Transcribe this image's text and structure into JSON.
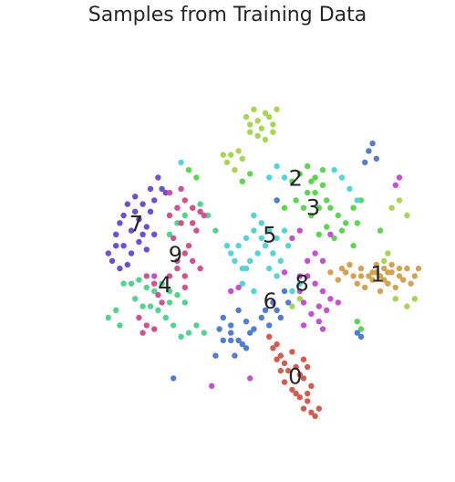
{
  "chart_data": {
    "type": "scatter",
    "title": "Samples from Training Data",
    "xlabel": "",
    "ylabel": "",
    "axes_visible": false,
    "grid": false,
    "legend": "none",
    "xlim": [
      0,
      100
    ],
    "ylim": [
      0,
      100
    ],
    "series": [
      {
        "label": "0",
        "color": "#d65a4f",
        "points": [
          [
            57,
            25
          ],
          [
            58,
            22
          ],
          [
            59,
            23
          ],
          [
            60,
            21
          ],
          [
            59,
            19
          ],
          [
            60,
            16
          ],
          [
            62,
            14
          ],
          [
            63,
            13
          ],
          [
            61,
            19
          ],
          [
            64,
            18
          ],
          [
            66,
            20
          ],
          [
            65,
            17
          ],
          [
            64,
            12
          ],
          [
            66,
            11
          ],
          [
            67,
            8
          ],
          [
            65,
            9
          ],
          [
            68,
            7
          ],
          [
            69,
            9
          ],
          [
            66,
            13
          ],
          [
            67,
            15
          ],
          [
            56,
            28
          ],
          [
            58,
            26
          ],
          [
            62,
            24
          ],
          [
            65,
            22
          ],
          [
            63,
            20
          ]
        ]
      },
      {
        "label": "1",
        "color": "#d6a24f",
        "points": [
          [
            72,
            45
          ],
          [
            74,
            43
          ],
          [
            76,
            45
          ],
          [
            78,
            44
          ],
          [
            80,
            46
          ],
          [
            82,
            44
          ],
          [
            84,
            45
          ],
          [
            86,
            43
          ],
          [
            88,
            45
          ],
          [
            90,
            44
          ],
          [
            92,
            46
          ],
          [
            94,
            44
          ],
          [
            79,
            42
          ],
          [
            81,
            41
          ],
          [
            83,
            43
          ],
          [
            85,
            40
          ],
          [
            87,
            42
          ],
          [
            89,
            41
          ],
          [
            91,
            43
          ],
          [
            75,
            46
          ],
          [
            77,
            47
          ],
          [
            84,
            47
          ],
          [
            86,
            46
          ],
          [
            88,
            47
          ],
          [
            90,
            46
          ],
          [
            93,
            42
          ],
          [
            95,
            46
          ],
          [
            80,
            44
          ],
          [
            83,
            45
          ],
          [
            85,
            44
          ],
          [
            87,
            45
          ]
        ]
      },
      {
        "label": "2",
        "color": "#a8d64f",
        "points": [
          [
            50,
            86
          ],
          [
            51,
            84
          ],
          [
            52,
            88
          ],
          [
            53,
            85
          ],
          [
            54,
            83
          ],
          [
            55,
            87
          ],
          [
            56,
            86
          ],
          [
            57,
            84
          ],
          [
            58,
            88
          ],
          [
            53,
            81
          ],
          [
            55,
            80
          ],
          [
            57,
            82
          ],
          [
            51,
            82
          ],
          [
            44,
            76
          ],
          [
            46,
            76
          ],
          [
            48,
            77
          ],
          [
            49,
            75
          ],
          [
            45,
            74
          ],
          [
            47,
            72
          ],
          [
            88,
            62
          ],
          [
            90,
            64
          ],
          [
            92,
            60
          ],
          [
            89,
            38
          ],
          [
            92,
            36
          ],
          [
            94,
            38
          ],
          [
            62,
            36
          ],
          [
            64,
            38
          ],
          [
            87,
            50
          ],
          [
            86,
            48
          ]
        ]
      },
      {
        "label": "3",
        "color": "#5ad64f",
        "points": [
          [
            62,
            69
          ],
          [
            64,
            71
          ],
          [
            66,
            73
          ],
          [
            67,
            69
          ],
          [
            68,
            66
          ],
          [
            70,
            68
          ],
          [
            71,
            64
          ],
          [
            72,
            62
          ],
          [
            69,
            62
          ],
          [
            67,
            60
          ],
          [
            65,
            62
          ],
          [
            63,
            64
          ],
          [
            66,
            66
          ],
          [
            68,
            70
          ],
          [
            70,
            72
          ],
          [
            74,
            60
          ],
          [
            76,
            58
          ],
          [
            78,
            62
          ],
          [
            80,
            64
          ],
          [
            79,
            58
          ],
          [
            75,
            56
          ],
          [
            73,
            54
          ],
          [
            71,
            57
          ],
          [
            69,
            55
          ],
          [
            49,
            69
          ],
          [
            51,
            71
          ],
          [
            58,
            64
          ],
          [
            60,
            62
          ],
          [
            78,
            52
          ],
          [
            80,
            30
          ],
          [
            79,
            32
          ],
          [
            85,
            56
          ],
          [
            35,
            72
          ],
          [
            37,
            70
          ]
        ]
      },
      {
        "label": "4",
        "color": "#4fd68c",
        "points": [
          [
            20,
            42
          ],
          [
            22,
            43
          ],
          [
            24,
            41
          ],
          [
            26,
            40
          ],
          [
            28,
            42
          ],
          [
            30,
            40
          ],
          [
            25,
            36
          ],
          [
            27,
            35
          ],
          [
            30,
            37
          ],
          [
            32,
            39
          ],
          [
            34,
            37
          ],
          [
            29,
            33
          ],
          [
            31,
            31
          ],
          [
            35,
            29
          ],
          [
            37,
            31
          ],
          [
            39,
            29
          ],
          [
            33,
            28
          ],
          [
            21,
            38
          ],
          [
            23,
            36
          ],
          [
            16,
            35
          ],
          [
            14,
            33
          ],
          [
            17,
            31
          ],
          [
            30,
            55
          ],
          [
            32,
            58
          ],
          [
            34,
            60
          ],
          [
            36,
            62
          ],
          [
            38,
            63
          ],
          [
            40,
            60
          ],
          [
            42,
            56
          ],
          [
            18,
            42
          ]
        ]
      },
      {
        "label": "5",
        "color": "#4fd6d6",
        "points": [
          [
            46,
            50
          ],
          [
            48,
            52
          ],
          [
            50,
            54
          ],
          [
            52,
            56
          ],
          [
            54,
            58
          ],
          [
            56,
            56
          ],
          [
            58,
            54
          ],
          [
            55,
            52
          ],
          [
            53,
            50
          ],
          [
            51,
            48
          ],
          [
            49,
            46
          ],
          [
            47,
            48
          ],
          [
            45,
            52
          ],
          [
            57,
            50
          ],
          [
            59,
            48
          ],
          [
            61,
            52
          ],
          [
            60,
            56
          ],
          [
            54,
            54
          ],
          [
            52,
            60
          ],
          [
            50,
            46
          ],
          [
            49,
            42
          ],
          [
            52,
            40
          ],
          [
            56,
            46
          ],
          [
            58,
            44
          ],
          [
            62,
            40
          ],
          [
            64,
            42
          ],
          [
            33,
            74
          ],
          [
            56,
            70
          ],
          [
            58,
            73
          ],
          [
            60,
            70
          ],
          [
            73,
            72
          ],
          [
            75,
            70
          ],
          [
            77,
            67
          ],
          [
            79,
            64
          ]
        ]
      },
      {
        "label": "6",
        "color": "#4f7cd6",
        "points": [
          [
            44,
            33
          ],
          [
            46,
            31
          ],
          [
            48,
            35
          ],
          [
            50,
            32
          ],
          [
            52,
            30
          ],
          [
            54,
            33
          ],
          [
            56,
            31
          ],
          [
            58,
            35
          ],
          [
            46,
            29
          ],
          [
            48,
            27
          ],
          [
            50,
            25
          ],
          [
            47,
            23
          ],
          [
            42,
            23
          ],
          [
            44,
            27
          ],
          [
            43,
            30
          ],
          [
            55,
            35
          ],
          [
            57,
            37
          ],
          [
            59,
            33
          ],
          [
            61,
            37
          ],
          [
            60,
            40
          ],
          [
            31,
            17
          ],
          [
            58,
            64
          ],
          [
            82,
            77
          ],
          [
            83,
            79
          ],
          [
            84,
            75
          ],
          [
            81,
            74
          ],
          [
            79,
            29
          ],
          [
            80,
            28
          ],
          [
            46,
            27
          ],
          [
            49,
            26
          ],
          [
            51,
            29
          ]
        ]
      },
      {
        "label": "7",
        "color": "#6b4fd6",
        "points": [
          [
            18,
            60
          ],
          [
            20,
            56
          ],
          [
            22,
            59
          ],
          [
            24,
            57
          ],
          [
            26,
            55
          ],
          [
            25,
            61
          ],
          [
            23,
            63
          ],
          [
            21,
            65
          ],
          [
            19,
            63
          ],
          [
            17,
            58
          ],
          [
            16,
            55
          ],
          [
            18,
            52
          ],
          [
            20,
            50
          ],
          [
            22,
            53
          ],
          [
            24,
            51
          ],
          [
            26,
            64
          ],
          [
            28,
            67
          ],
          [
            27,
            70
          ],
          [
            29,
            66
          ],
          [
            23,
            55
          ],
          [
            21,
            61
          ],
          [
            14,
            50
          ],
          [
            15,
            48
          ],
          [
            16,
            52
          ],
          [
            17,
            46
          ],
          [
            19,
            47
          ],
          [
            25,
            67
          ]
        ]
      },
      {
        "label": "8",
        "color": "#c64fd6",
        "points": [
          [
            66,
            44
          ],
          [
            68,
            42
          ],
          [
            70,
            40
          ],
          [
            72,
            38
          ],
          [
            69,
            36
          ],
          [
            67,
            34
          ],
          [
            65,
            37
          ],
          [
            64,
            40
          ],
          [
            71,
            35
          ],
          [
            69,
            32
          ],
          [
            70,
            30
          ],
          [
            65,
            31
          ],
          [
            64,
            44
          ],
          [
            66,
            48
          ],
          [
            68,
            50
          ],
          [
            62,
            54
          ],
          [
            64,
            56
          ],
          [
            72,
            55
          ],
          [
            70,
            48
          ],
          [
            60,
            45
          ],
          [
            46,
            40
          ],
          [
            48,
            41
          ],
          [
            90,
            70
          ],
          [
            41,
            15
          ],
          [
            51,
            17
          ],
          [
            26,
            44
          ],
          [
            89,
            68
          ],
          [
            74,
            37
          ]
        ]
      },
      {
        "label": "9",
        "color": "#d64f8f",
        "points": [
          [
            30,
            60
          ],
          [
            32,
            62
          ],
          [
            34,
            64
          ],
          [
            36,
            62
          ],
          [
            38,
            61
          ],
          [
            33,
            58
          ],
          [
            31,
            54
          ],
          [
            34,
            50
          ],
          [
            36,
            48
          ],
          [
            32,
            46
          ],
          [
            30,
            44
          ],
          [
            34,
            44
          ],
          [
            38,
            46
          ],
          [
            35,
            52
          ],
          [
            37,
            56
          ],
          [
            24,
            44
          ],
          [
            26,
            42
          ],
          [
            22,
            33
          ],
          [
            24,
            31
          ],
          [
            26,
            30
          ],
          [
            28,
            37
          ],
          [
            27,
            39
          ],
          [
            23,
            29
          ],
          [
            32,
            48
          ],
          [
            30,
            66
          ],
          [
            33,
            67
          ],
          [
            36,
            58
          ],
          [
            34,
            41
          ],
          [
            39,
            60
          ]
        ]
      }
    ],
    "annotations": [
      "0",
      "1",
      "2",
      "3",
      "4",
      "5",
      "6",
      "7",
      "8",
      "9"
    ]
  }
}
